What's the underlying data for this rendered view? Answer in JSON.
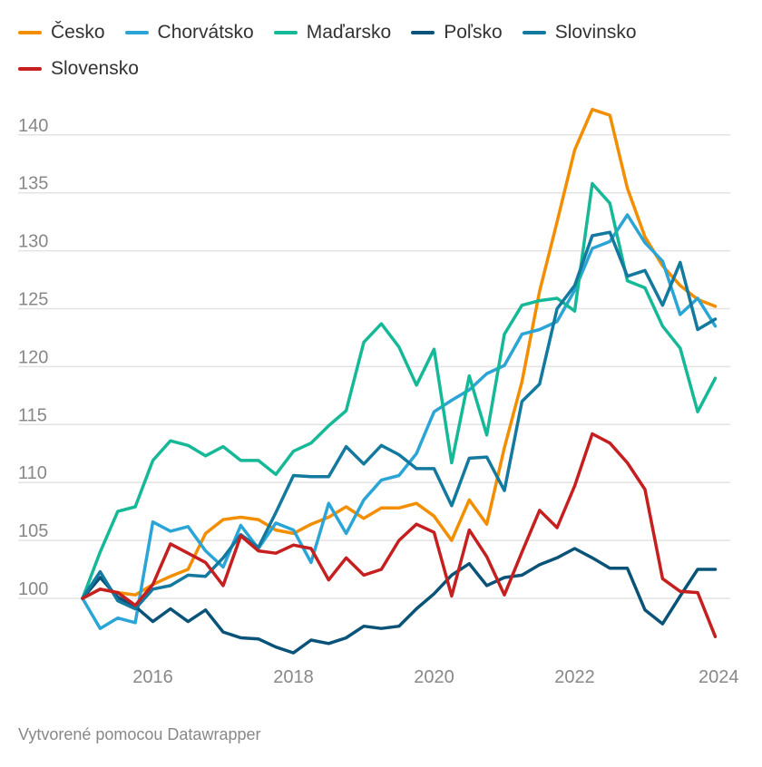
{
  "chart_data": {
    "type": "line",
    "title": "",
    "xlabel": "",
    "ylabel": "",
    "x": [
      2015,
      2015.25,
      2015.5,
      2015.75,
      2016,
      2016.25,
      2016.5,
      2016.75,
      2017,
      2017.25,
      2017.5,
      2017.75,
      2018,
      2018.25,
      2018.5,
      2018.75,
      2019,
      2019.25,
      2019.5,
      2019.75,
      2020,
      2020.25,
      2020.5,
      2020.75,
      2021,
      2021.25,
      2021.5,
      2021.75,
      2022,
      2022.25,
      2022.5,
      2022.75,
      2023,
      2023.25,
      2023.5,
      2023.75,
      2024
    ],
    "xlim": [
      2015,
      2024
    ],
    "ylim": [
      94.5,
      144
    ],
    "x_ticks": [
      "2016",
      "2018",
      "2020",
      "2022",
      "2024"
    ],
    "y_ticks": [
      "100",
      "105",
      "110",
      "115",
      "120",
      "125",
      "130",
      "135",
      "140"
    ],
    "grid": true,
    "legend": "top",
    "series": [
      {
        "name": "Česko",
        "color": "#f28e00",
        "values": [
          100,
          100.8,
          100.5,
          100.3,
          101.2,
          101.9,
          102.5,
          105.6,
          106.8,
          107.0,
          106.8,
          105.9,
          105.6,
          106.4,
          107.0,
          107.9,
          106.9,
          107.8,
          107.8,
          108.2,
          107.1,
          105.0,
          108.5,
          106.4,
          113.0,
          118.7,
          126.5,
          132.5,
          138.7,
          142.2,
          141.7,
          135.4,
          131.2,
          128.7,
          127.0,
          125.8,
          125.2
        ]
      },
      {
        "name": "Chorvátsko",
        "color": "#2aa5d6",
        "values": [
          100,
          97.4,
          98.3,
          97.9,
          106.6,
          105.8,
          106.2,
          104.1,
          102.7,
          106.3,
          104.3,
          106.5,
          105.9,
          103.1,
          108.2,
          105.6,
          108.5,
          110.2,
          110.6,
          112.5,
          116.1,
          117.1,
          118.0,
          119.4,
          120.1,
          122.8,
          123.2,
          123.9,
          126.6,
          130.2,
          130.8,
          133.1,
          130.7,
          129.1,
          124.5,
          125.9,
          123.5
        ]
      },
      {
        "name": "Maďarsko",
        "color": "#15b897",
        "values": [
          100,
          104.0,
          107.5,
          107.9,
          111.9,
          113.6,
          113.2,
          112.3,
          113.1,
          111.9,
          111.9,
          110.7,
          112.7,
          113.4,
          114.9,
          116.2,
          122.1,
          123.7,
          121.7,
          118.4,
          121.5,
          111.7,
          119.2,
          114.1,
          122.8,
          125.3,
          125.7,
          125.9,
          124.8,
          135.8,
          134.1,
          127.4,
          126.8,
          123.5,
          121.6,
          116.1,
          119.0
        ]
      },
      {
        "name": "Poľsko",
        "color": "#0a5378",
        "values": [
          100,
          101.8,
          100.1,
          99.3,
          98.0,
          99.1,
          98.0,
          99.0,
          97.1,
          96.6,
          96.5,
          95.8,
          95.3,
          96.4,
          96.1,
          96.6,
          97.6,
          97.4,
          97.6,
          99.1,
          100.4,
          102.0,
          103.0,
          101.1,
          101.8,
          102.0,
          102.9,
          103.5,
          104.3,
          103.5,
          102.6,
          102.6,
          99.0,
          97.8,
          100.2,
          102.5,
          102.5
        ]
      },
      {
        "name": "Slovinsko",
        "color": "#13799f",
        "values": [
          100,
          102.3,
          99.8,
          99.1,
          100.8,
          101.1,
          102.0,
          101.9,
          103.5,
          105.5,
          104.4,
          107.4,
          110.6,
          110.5,
          110.5,
          113.1,
          111.6,
          113.2,
          112.4,
          111.2,
          111.2,
          108.0,
          112.1,
          112.2,
          109.3,
          117.0,
          118.5,
          125.0,
          127.0,
          131.3,
          131.6,
          127.8,
          128.3,
          125.3,
          129.0,
          123.2,
          124.1
        ]
      },
      {
        "name": "Slovensko",
        "color": "#c51f1f",
        "values": [
          100,
          100.8,
          100.5,
          99.4,
          101.2,
          104.7,
          103.9,
          103.1,
          101.1,
          105.4,
          104.1,
          103.9,
          104.6,
          104.3,
          101.6,
          103.5,
          102.0,
          102.5,
          105.0,
          106.4,
          105.7,
          100.2,
          105.9,
          103.6,
          100.3,
          104.0,
          107.6,
          106.1,
          109.7,
          114.2,
          113.4,
          111.7,
          109.4,
          101.7,
          100.6,
          100.5,
          96.7
        ]
      }
    ]
  },
  "footer": {
    "credit": "Vytvorené pomocou Datawrapper"
  }
}
